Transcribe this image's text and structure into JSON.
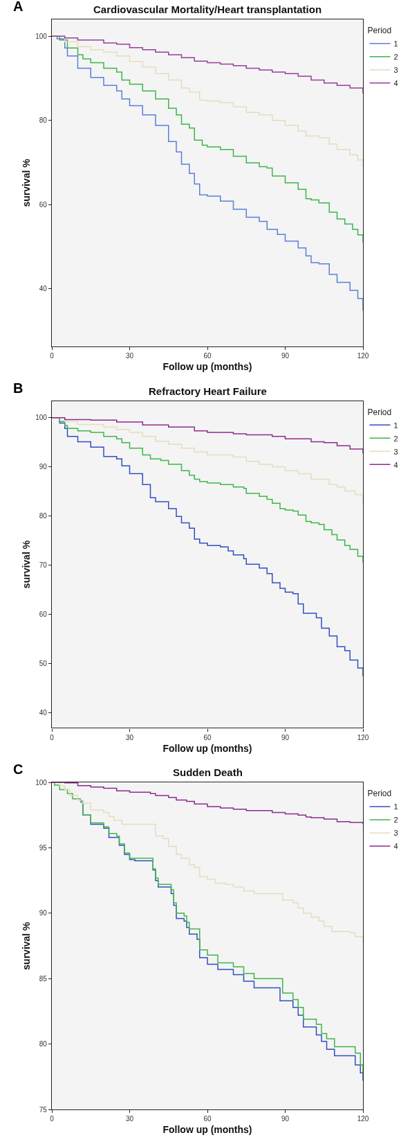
{
  "chart_data": [
    {
      "type": "step",
      "title": "Cardiovascular Mortality/Heart transplantation",
      "annotations": [
        "A"
      ],
      "xlabel": "Follow up (months)",
      "ylabel": "survival %",
      "legend_title": "Period",
      "legend": "top right",
      "grid": false,
      "xlim": [
        0,
        120
      ],
      "xticks": [
        0,
        30,
        60,
        90,
        120
      ],
      "ylim": [
        26.3,
        104
      ],
      "yticks": [
        40,
        60,
        80,
        100
      ],
      "series": [
        {
          "name": "1",
          "color": "#5a7fd8",
          "x": [
            0,
            2,
            5,
            6,
            10,
            15,
            20,
            25,
            27,
            30,
            35,
            40,
            45,
            48,
            50,
            53,
            55,
            57,
            60,
            65,
            70,
            75,
            80,
            83,
            87,
            90,
            95,
            98,
            100,
            103,
            107,
            110,
            115,
            118,
            120
          ],
          "values": [
            100,
            99.4,
            97.2,
            95.3,
            92.4,
            90.2,
            88.3,
            87.0,
            85.1,
            83.5,
            81.3,
            78.8,
            75.0,
            72.5,
            69.6,
            67.4,
            64.9,
            62.3,
            62.0,
            60.8,
            58.9,
            57.0,
            56.0,
            54.1,
            52.9,
            51.3,
            49.7,
            47.8,
            46.2,
            45.9,
            43.4,
            41.5,
            39.6,
            37.7,
            34.8
          ]
        },
        {
          "name": "2",
          "color": "#3db54a",
          "x": [
            0,
            3,
            6,
            10,
            12,
            15,
            20,
            25,
            27,
            30,
            35,
            40,
            45,
            48,
            50,
            53,
            55,
            58,
            60,
            65,
            70,
            75,
            80,
            83,
            85,
            90,
            95,
            98,
            100,
            103,
            107,
            110,
            113,
            116,
            118,
            120
          ],
          "values": [
            100,
            99.1,
            97.2,
            95.6,
            94.6,
            93.7,
            92.4,
            91.5,
            89.6,
            88.6,
            87.0,
            85.1,
            82.9,
            81.3,
            79.1,
            78.2,
            75.3,
            74.1,
            73.7,
            73.1,
            71.5,
            69.9,
            69.0,
            68.7,
            66.8,
            65.2,
            63.6,
            61.4,
            61.1,
            60.4,
            58.2,
            56.6,
            55.4,
            54.1,
            52.8,
            50.9
          ]
        },
        {
          "name": "3",
          "color": "#e6dcbc",
          "x": [
            0,
            5,
            10,
            15,
            20,
            25,
            30,
            35,
            40,
            45,
            50,
            53,
            57,
            60,
            65,
            70,
            75,
            80,
            85,
            90,
            95,
            98,
            103,
            107,
            110,
            115,
            118,
            120
          ],
          "values": [
            100,
            98.7,
            97.5,
            96.8,
            96.2,
            95.3,
            94.0,
            92.7,
            91.1,
            89.6,
            87.7,
            86.7,
            84.8,
            84.6,
            84.2,
            83.2,
            81.9,
            81.3,
            80.0,
            78.8,
            77.5,
            76.3,
            75.9,
            74.4,
            73.1,
            71.8,
            70.6,
            69.0
          ]
        },
        {
          "name": "4",
          "color": "#9a3c9a",
          "x": [
            0,
            5,
            10,
            20,
            25,
            30,
            35,
            40,
            45,
            50,
            55,
            60,
            65,
            70,
            75,
            80,
            85,
            90,
            95,
            100,
            105,
            110,
            115,
            120
          ],
          "values": [
            100,
            99.6,
            99.1,
            98.4,
            98.1,
            97.3,
            96.8,
            96.2,
            95.6,
            94.9,
            94.1,
            93.7,
            93.4,
            93.0,
            92.4,
            92.0,
            91.5,
            91.1,
            90.5,
            89.6,
            88.9,
            88.3,
            87.7,
            86.4
          ]
        }
      ]
    },
    {
      "type": "step",
      "title": "Refractory Heart Failure",
      "annotations": [
        "B"
      ],
      "xlabel": "Follow up (months)",
      "ylabel": "survival %",
      "legend_title": "Period",
      "legend": "top right",
      "grid": false,
      "xlim": [
        0,
        120
      ],
      "xticks": [
        0,
        30,
        60,
        90,
        120
      ],
      "ylim": [
        36.9,
        103.4
      ],
      "yticks": [
        40,
        50,
        60,
        70,
        80,
        90,
        100
      ],
      "series": [
        {
          "name": "1",
          "color": "#2f4fc2",
          "x": [
            0,
            3,
            5,
            6,
            10,
            15,
            20,
            25,
            27,
            30,
            35,
            38,
            40,
            45,
            48,
            50,
            53,
            55,
            57,
            60,
            65,
            68,
            70,
            74,
            75,
            80,
            83,
            85,
            88,
            90,
            93,
            95,
            97,
            100,
            102,
            104,
            107,
            110,
            113,
            115,
            118,
            120
          ],
          "values": [
            100,
            98.9,
            97.8,
            96.2,
            95.1,
            94.0,
            92.1,
            91.6,
            90.2,
            88.6,
            86.4,
            83.7,
            82.9,
            81.5,
            79.9,
            78.6,
            77.5,
            75.3,
            74.5,
            74.0,
            73.7,
            72.9,
            72.1,
            71.3,
            70.2,
            69.4,
            68.3,
            66.4,
            65.3,
            64.5,
            64.2,
            62.1,
            60.2,
            60.2,
            59.3,
            57.2,
            55.6,
            53.4,
            52.6,
            50.7,
            49.1,
            47.4
          ]
        },
        {
          "name": "2",
          "color": "#3db54a",
          "x": [
            0,
            3,
            5,
            6,
            10,
            15,
            20,
            25,
            27,
            30,
            35,
            38,
            42,
            45,
            50,
            53,
            55,
            57,
            60,
            65,
            70,
            74,
            75,
            80,
            83,
            85,
            88,
            90,
            93,
            95,
            98,
            100,
            103,
            105,
            108,
            110,
            113,
            115,
            118,
            120
          ],
          "values": [
            100,
            99.2,
            98.4,
            97.8,
            97.3,
            97.0,
            96.2,
            95.7,
            94.9,
            93.8,
            92.4,
            91.6,
            91.3,
            90.5,
            89.2,
            88.3,
            87.5,
            87.0,
            86.7,
            86.4,
            85.9,
            85.6,
            84.6,
            84.0,
            83.4,
            82.6,
            81.5,
            81.2,
            81.0,
            80.2,
            78.9,
            78.6,
            78.3,
            77.2,
            76.2,
            75.1,
            74.0,
            73.2,
            71.8,
            70.5
          ]
        },
        {
          "name": "3",
          "color": "#e6dcbc",
          "x": [
            0,
            5,
            10,
            20,
            25,
            30,
            35,
            40,
            45,
            50,
            55,
            60,
            65,
            70,
            75,
            80,
            85,
            90,
            95,
            100,
            103,
            107,
            110,
            113,
            117,
            120
          ],
          "values": [
            100,
            99.2,
            98.6,
            98.1,
            97.6,
            97.0,
            96.2,
            95.2,
            94.6,
            93.8,
            93.0,
            92.4,
            92.4,
            92.0,
            91.1,
            90.5,
            90.0,
            89.2,
            88.6,
            87.5,
            87.5,
            86.4,
            85.9,
            85.1,
            84.3,
            82.4
          ]
        },
        {
          "name": "4",
          "color": "#8e2a8e",
          "x": [
            0,
            5,
            15,
            25,
            35,
            45,
            55,
            60,
            70,
            75,
            85,
            90,
            100,
            105,
            110,
            115,
            120
          ],
          "values": [
            100,
            99.6,
            99.5,
            99.1,
            98.5,
            98.1,
            97.3,
            97.0,
            96.7,
            96.5,
            96.2,
            95.7,
            95.1,
            94.9,
            94.3,
            93.6,
            92.7
          ]
        }
      ]
    },
    {
      "type": "step",
      "title": "Sudden Death",
      "annotations": [
        "C"
      ],
      "xlabel": "Follow up (months)",
      "ylabel": "survival %",
      "legend_title": "Period",
      "legend": "top right",
      "grid": false,
      "xlim": [
        0,
        120
      ],
      "xticks": [
        0,
        30,
        60,
        90,
        120
      ],
      "ylim": [
        75,
        100
      ],
      "yticks": [
        75,
        80,
        85,
        90,
        95,
        100
      ],
      "series": [
        {
          "name": "1",
          "color": "#2f4fc2",
          "x": [
            11,
            12,
            15,
            20,
            22,
            25,
            26,
            28,
            30,
            32,
            38,
            39,
            40,
            41,
            44,
            46,
            47,
            48,
            51,
            52,
            53,
            56,
            57,
            60,
            64,
            70,
            74,
            78,
            85,
            88,
            93,
            95,
            97,
            100,
            102,
            104,
            106,
            109,
            116,
            117,
            119,
            120
          ],
          "values": [
            98.5,
            97.5,
            96.8,
            96.5,
            95.8,
            95.8,
            95.2,
            94.5,
            94.1,
            94.0,
            94.0,
            93.3,
            92.5,
            92.0,
            92.0,
            91.5,
            90.6,
            89.6,
            89.4,
            88.9,
            88.4,
            88.0,
            86.6,
            86.1,
            85.7,
            85.3,
            84.8,
            84.3,
            84.3,
            83.3,
            82.8,
            82.2,
            81.3,
            81.3,
            80.7,
            80.2,
            79.6,
            79.1,
            79.1,
            78.4,
            77.8,
            77.2
          ]
        },
        {
          "name": "2",
          "color": "#3db54a",
          "x": [
            0,
            1,
            3,
            6,
            8,
            11,
            12,
            15,
            20,
            22,
            25,
            26,
            28,
            30,
            38,
            39,
            40,
            41,
            44,
            46,
            47,
            48,
            51,
            52,
            53,
            57,
            60,
            64,
            70,
            74,
            78,
            88,
            89,
            93,
            95,
            97,
            102,
            104,
            106,
            109,
            116,
            117,
            119,
            120
          ],
          "values": [
            100,
            99.8,
            99.45,
            99.15,
            98.75,
            98.6,
            97.5,
            96.9,
            96.6,
            96.1,
            95.9,
            95.3,
            94.6,
            94.2,
            94.2,
            93.4,
            92.7,
            92.2,
            92.2,
            91.8,
            90.8,
            90.0,
            89.8,
            89.3,
            88.8,
            87.2,
            86.8,
            86.2,
            85.9,
            85.4,
            85.0,
            85.0,
            83.9,
            83.4,
            82.8,
            81.9,
            81.5,
            80.8,
            80.4,
            79.8,
            79.8,
            79.3,
            78.4,
            77.6
          ]
        },
        {
          "name": "3",
          "color": "#e6dcbc",
          "x": [
            0,
            3,
            5,
            7,
            10,
            12,
            15,
            20,
            22,
            24,
            27,
            38,
            40,
            43,
            45,
            48,
            50,
            53,
            55,
            57,
            60,
            63,
            67,
            70,
            74,
            78,
            88,
            89,
            93,
            95,
            97,
            100,
            103,
            105,
            108,
            115,
            117,
            120
          ],
          "values": [
            100,
            99.75,
            99.45,
            99.0,
            98.65,
            98.4,
            97.9,
            97.7,
            97.4,
            97.1,
            96.8,
            96.8,
            95.9,
            95.7,
            95.1,
            94.5,
            94.2,
            93.7,
            93.5,
            92.8,
            92.6,
            92.3,
            92.2,
            92.0,
            91.7,
            91.5,
            91.5,
            91.0,
            90.8,
            90.4,
            90.0,
            89.7,
            89.4,
            89.0,
            88.6,
            88.5,
            88.2,
            87.8
          ]
        },
        {
          "name": "4",
          "color": "#8e2a8e",
          "x": [
            0,
            5,
            10,
            15,
            20,
            25,
            30,
            38,
            40,
            45,
            48,
            52,
            55,
            60,
            65,
            70,
            75,
            85,
            90,
            95,
            98,
            100,
            105,
            110,
            115,
            120
          ],
          "values": [
            100,
            99.96,
            99.75,
            99.65,
            99.55,
            99.35,
            99.25,
            99.15,
            99.0,
            98.85,
            98.65,
            98.55,
            98.35,
            98.15,
            98.05,
            97.95,
            97.85,
            97.7,
            97.6,
            97.5,
            97.35,
            97.3,
            97.2,
            97.0,
            96.95,
            96.8
          ]
        }
      ]
    }
  ]
}
